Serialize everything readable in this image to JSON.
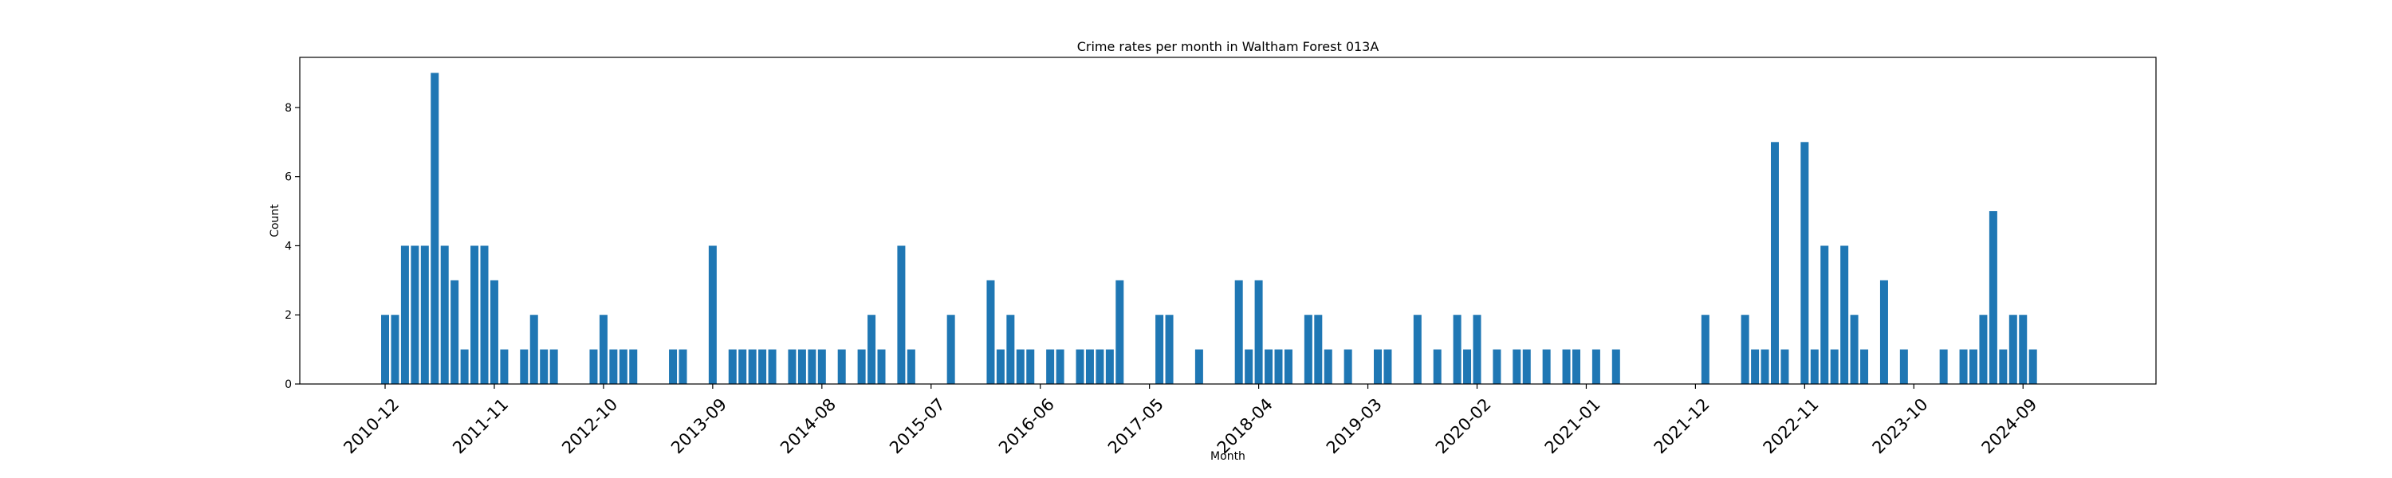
{
  "chart_data": {
    "type": "bar",
    "title": "Crime rates per month in Waltham Forest 013A",
    "xlabel": "Month",
    "ylabel": "Count",
    "ylim": [
      0,
      9.45
    ],
    "yticks": [
      0,
      2,
      4,
      6,
      8
    ],
    "xticks": [
      "2010-12",
      "2011-11",
      "2012-10",
      "2013-09",
      "2014-08",
      "2015-07",
      "2016-06",
      "2017-05",
      "2018-04",
      "2019-03",
      "2020-02",
      "2021-01",
      "2021-12",
      "2022-11",
      "2023-10",
      "2024-09"
    ],
    "bar_color": "#1f77b4",
    "grid": false,
    "categories": [
      "2010-12",
      "2011-01",
      "2011-02",
      "2011-03",
      "2011-04",
      "2011-05",
      "2011-06",
      "2011-07",
      "2011-08",
      "2011-09",
      "2011-10",
      "2011-11",
      "2011-12",
      "2012-02",
      "2012-03",
      "2012-04",
      "2012-05",
      "2012-09",
      "2012-10",
      "2012-11",
      "2012-12",
      "2013-01",
      "2013-05",
      "2013-06",
      "2013-09",
      "2013-11",
      "2013-12",
      "2014-01",
      "2014-02",
      "2014-03",
      "2014-05",
      "2014-06",
      "2014-07",
      "2014-08",
      "2014-10",
      "2014-12",
      "2015-01",
      "2015-02",
      "2015-04",
      "2015-05",
      "2015-09",
      "2016-01",
      "2016-02",
      "2016-03",
      "2016-04",
      "2016-05",
      "2016-07",
      "2016-08",
      "2016-10",
      "2016-11",
      "2016-12",
      "2017-01",
      "2017-02",
      "2017-06",
      "2017-07",
      "2017-10",
      "2018-02",
      "2018-03",
      "2018-04",
      "2018-05",
      "2018-06",
      "2018-07",
      "2018-09",
      "2018-10",
      "2018-11",
      "2019-01",
      "2019-04",
      "2019-05",
      "2019-08",
      "2019-10",
      "2019-12",
      "2020-01",
      "2020-02",
      "2020-04",
      "2020-06",
      "2020-07",
      "2020-09",
      "2020-11",
      "2020-12",
      "2021-02",
      "2021-04",
      "2022-01",
      "2022-05",
      "2022-06",
      "2022-07",
      "2022-08",
      "2022-09",
      "2022-11",
      "2022-12",
      "2023-01",
      "2023-02",
      "2023-03",
      "2023-04",
      "2023-05",
      "2023-07",
      "2023-09",
      "2024-01",
      "2024-03",
      "2024-04",
      "2024-05",
      "2024-06",
      "2024-07",
      "2024-08",
      "2024-09",
      "2024-10"
    ],
    "values": [
      2,
      2,
      4,
      4,
      4,
      9,
      4,
      3,
      1,
      4,
      4,
      3,
      1,
      1,
      2,
      1,
      1,
      1,
      2,
      1,
      1,
      1,
      1,
      1,
      4,
      1,
      1,
      1,
      1,
      1,
      1,
      1,
      1,
      1,
      1,
      1,
      2,
      1,
      4,
      1,
      2,
      3,
      1,
      2,
      1,
      1,
      1,
      1,
      1,
      1,
      1,
      1,
      3,
      2,
      2,
      1,
      3,
      1,
      3,
      1,
      1,
      1,
      2,
      2,
      1,
      1,
      1,
      1,
      2,
      1,
      2,
      1,
      2,
      1,
      1,
      1,
      1,
      1,
      1,
      1,
      1,
      2,
      2,
      1,
      1,
      7,
      1,
      7,
      1,
      4,
      1,
      4,
      2,
      1,
      3,
      1,
      1,
      1,
      1,
      2,
      5,
      1,
      2,
      2,
      1
    ]
  }
}
